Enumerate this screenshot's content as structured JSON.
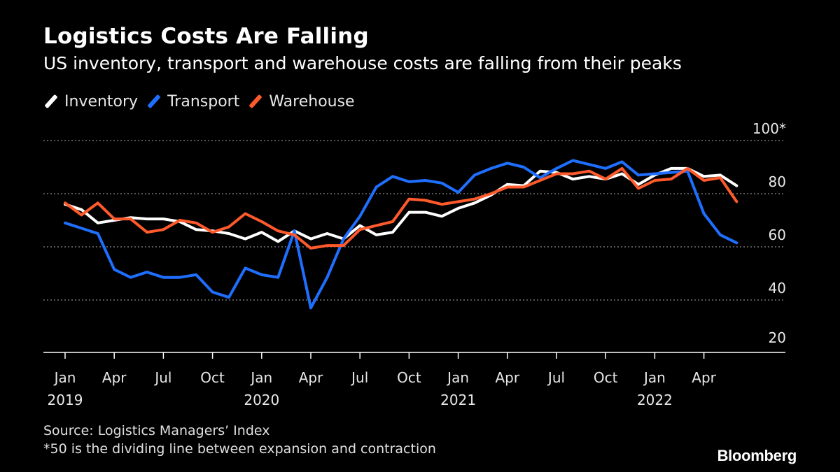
{
  "header": {
    "title": "Logistics Costs Are Falling",
    "subtitle": "US inventory, transport and warehouse costs are falling from their peaks"
  },
  "footer": {
    "source": "Source: Logistics Managers’ Index",
    "note": "*50 is the dividing line between expansion and contraction",
    "brand": "Bloomberg"
  },
  "colors": {
    "background": "#000000",
    "inventory": "#ffffff",
    "transport": "#1f6fff",
    "warehouse": "#ff5a2c",
    "grid": "#8a8a8a"
  },
  "chart_data": {
    "type": "line",
    "title": "Logistics Costs Are Falling",
    "subtitle": "US inventory, transport and warehouse costs are falling from their peaks",
    "x_labels": [
      {
        "month": "Jan",
        "year": "2019",
        "index": 0
      },
      {
        "month": "Apr",
        "year": "",
        "index": 3
      },
      {
        "month": "Jul",
        "year": "",
        "index": 6
      },
      {
        "month": "Oct",
        "year": "",
        "index": 9
      },
      {
        "month": "Jan",
        "year": "2020",
        "index": 12
      },
      {
        "month": "Apr",
        "year": "",
        "index": 15
      },
      {
        "month": "Jul",
        "year": "",
        "index": 18
      },
      {
        "month": "Oct",
        "year": "",
        "index": 21
      },
      {
        "month": "Jan",
        "year": "2021",
        "index": 24
      },
      {
        "month": "Apr",
        "year": "",
        "index": 27
      },
      {
        "month": "Jul",
        "year": "",
        "index": 30
      },
      {
        "month": "Oct",
        "year": "",
        "index": 33
      },
      {
        "month": "Jan",
        "year": "2022",
        "index": 36
      },
      {
        "month": "Apr",
        "year": "",
        "index": 39
      }
    ],
    "x_start": "2019-01",
    "x_end": "2022-06",
    "y_ticks": [
      "20",
      "40",
      "60",
      "80",
      "100*"
    ],
    "y_tick_values": [
      20,
      40,
      60,
      80,
      100
    ],
    "ylim": [
      17,
      100
    ],
    "grid": "horizontal dotted",
    "legend_position": "top-left",
    "series": [
      {
        "name": "Inventory",
        "color": "#ffffff",
        "values": [
          76,
          74,
          69,
          70,
          71,
          70.5,
          70.5,
          69.5,
          66.5,
          66,
          65,
          63,
          65.5,
          62,
          66,
          63,
          65,
          63,
          68,
          64.5,
          65.5,
          73,
          73,
          71.5,
          74.5,
          76.5,
          79.5,
          83.5,
          83,
          88.5,
          88,
          85.5,
          86.5,
          85.5,
          87.5,
          83.5,
          87,
          89.5,
          89.5,
          86.5,
          87,
          83
        ]
      },
      {
        "name": "Transport",
        "color": "#1f6fff",
        "values": [
          69,
          67,
          65,
          51.5,
          48.5,
          50.5,
          48.5,
          48.5,
          49.5,
          43,
          41,
          52,
          49.5,
          48.5,
          66,
          37,
          48.5,
          63,
          71.5,
          82.5,
          86.5,
          84.5,
          85,
          84,
          80.5,
          87,
          89.5,
          91.5,
          90,
          86,
          89.5,
          92.5,
          91,
          89.5,
          92,
          87,
          87.5,
          88,
          88.5,
          72.5,
          64.5,
          61.5
        ]
      },
      {
        "name": "Warehouse",
        "color": "#ff5a2c",
        "values": [
          76.5,
          72,
          76.5,
          70.5,
          70.5,
          65.5,
          66.5,
          70,
          69,
          65.5,
          67.5,
          72.5,
          69.5,
          66,
          64.5,
          59.5,
          60.5,
          60.5,
          66.5,
          68,
          69.5,
          78,
          77.5,
          76,
          77,
          78,
          80,
          82.5,
          82.5,
          85,
          87.5,
          87.5,
          88.5,
          85.5,
          89.5,
          82,
          85,
          85.5,
          89.5,
          85,
          86,
          77
        ]
      }
    ]
  }
}
